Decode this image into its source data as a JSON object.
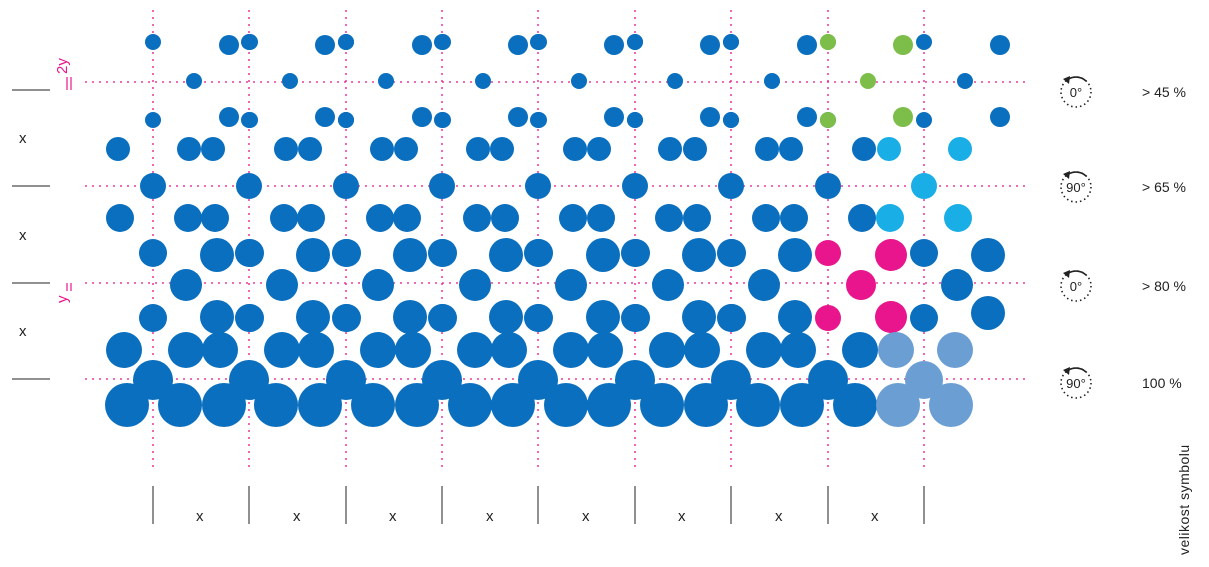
{
  "colors": {
    "blue": "#0a6fbe",
    "cyan": "#19aee6",
    "magenta": "#e8158c",
    "green": "#7dbe4a",
    "light_blue": "#6b9fd4",
    "guide": "#e8158c",
    "text": "#222222"
  },
  "column_labels": [
    "x",
    "x",
    "x",
    "x",
    "x",
    "x",
    "x",
    "x"
  ],
  "row_labels": [
    "x",
    "x",
    "x"
  ],
  "spacing_labels": {
    "two_y": "2y",
    "y": "y"
  },
  "legend": [
    {
      "angle": "0°",
      "threshold": "> 45  %",
      "rotation_icon": "rotate-icon"
    },
    {
      "angle": "90°",
      "threshold": "> 65  %",
      "rotation_icon": "rotate-icon"
    },
    {
      "angle": "0°",
      "threshold": "> 80  %",
      "rotation_icon": "rotate-icon"
    },
    {
      "angle": "90°",
      "threshold": "100  %",
      "rotation_icon": "rotate-icon"
    }
  ],
  "axis_title": "velikost  symbolu"
}
